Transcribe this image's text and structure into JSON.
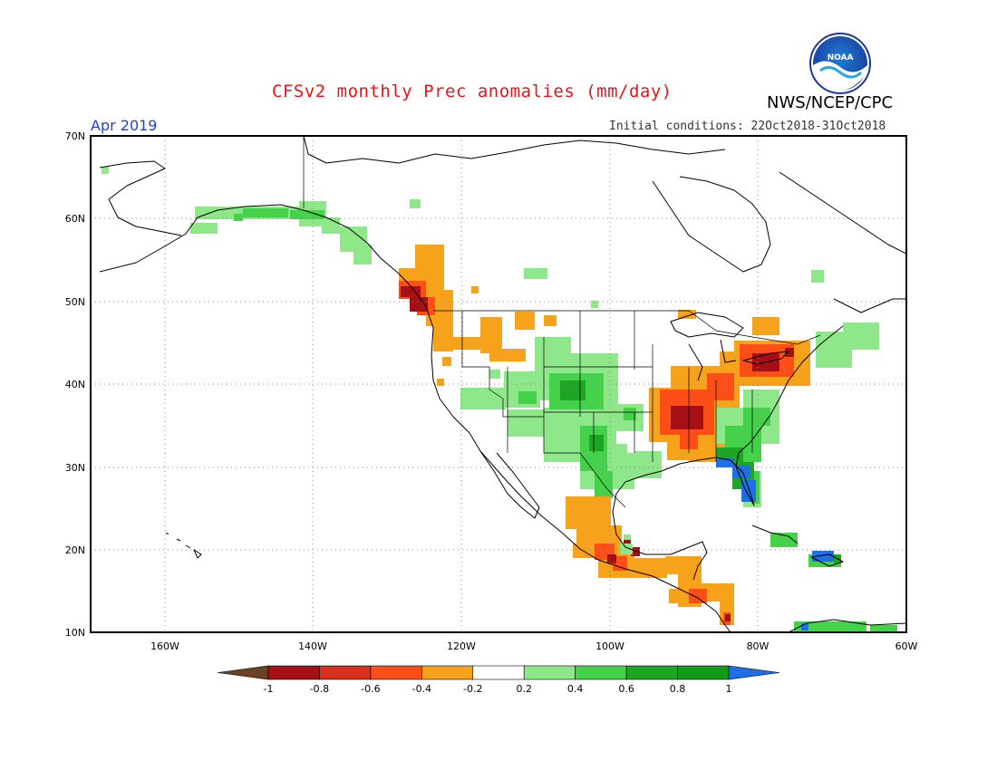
{
  "header": {
    "title": "CFSv2 monthly Prec anomalies (mm/day)",
    "org": "NWS/NCEP/CPC",
    "period": "Apr 2019",
    "initial_conditions": "Initial conditions: 22Oct2018-31Oct2018",
    "logo_text": "NOAA"
  },
  "axes": {
    "lat_labels": [
      "70N",
      "60N",
      "50N",
      "40N",
      "30N",
      "20N",
      "10N"
    ],
    "lon_labels": [
      "160W",
      "140W",
      "120W",
      "100W",
      "80W",
      "60W"
    ]
  },
  "colorbar": {
    "tick_labels": [
      "-1",
      "-0.8",
      "-0.6",
      "-0.4",
      "-0.2",
      "0.2",
      "0.4",
      "0.6",
      "0.8",
      "1"
    ],
    "colors": [
      "#6b4226",
      "#a50f15",
      "#d7301f",
      "#fc4e16",
      "#f6a21a",
      "#ffffff",
      "#8ee88a",
      "#45d24a",
      "#1fa524",
      "#139a1a",
      "#1e6ee6"
    ]
  },
  "colors": {
    "title": "#e8141b",
    "period": "#1f3fd6",
    "coast": "#000000",
    "grid": "#888888"
  }
}
